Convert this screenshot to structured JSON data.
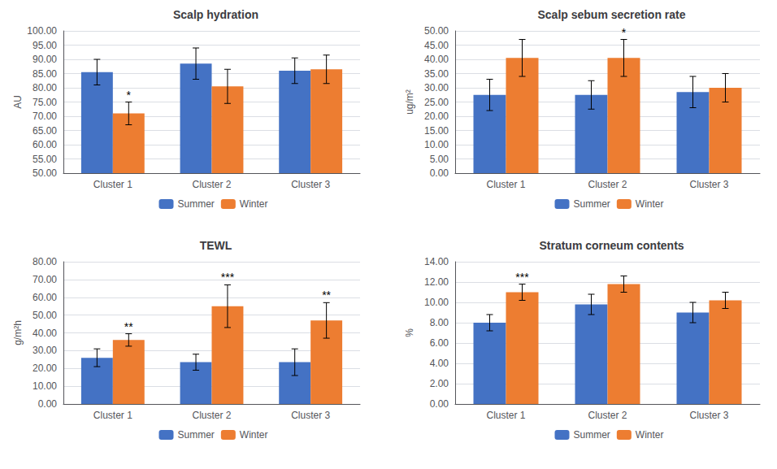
{
  "chart_data": [
    {
      "type": "bar",
      "title": "Scalp hydration",
      "ylabel": "AU",
      "categories": [
        "Cluster 1",
        "Cluster 2",
        "Cluster 3"
      ],
      "series": [
        {
          "name": "Summer",
          "color": "#4472C4",
          "values": [
            85.5,
            88.5,
            86.0
          ],
          "errors": [
            4.5,
            5.5,
            4.5
          ]
        },
        {
          "name": "Winter",
          "color": "#ED7D31",
          "values": [
            71.0,
            80.5,
            86.5
          ],
          "errors": [
            4.0,
            6.0,
            5.0
          ],
          "significance": [
            "*",
            null,
            null
          ]
        }
      ],
      "ylim": [
        50.0,
        100.0
      ],
      "yticks": [
        {
          "value": 50.0,
          "label": "50.00"
        },
        {
          "value": 55.0,
          "label": "55.00"
        },
        {
          "value": 60.0,
          "label": "60.00"
        },
        {
          "value": 65.0,
          "label": "65.00"
        },
        {
          "value": 70.0,
          "label": "70.00"
        },
        {
          "value": 75.0,
          "label": "75.00"
        },
        {
          "value": 80.0,
          "label": "80.00"
        },
        {
          "value": 85.0,
          "label": "85.00"
        },
        {
          "value": 90.0,
          "label": "90.00"
        },
        {
          "value": 95.0,
          "label": "95.00"
        },
        {
          "value": 100.0,
          "label": "100.00"
        }
      ],
      "grid": true,
      "legend": "bottom"
    },
    {
      "type": "bar",
      "title": "Scalp sebum secretion rate",
      "ylabel": "ug/m²",
      "categories": [
        "Cluster 1",
        "Cluster 2",
        "Cluster 3"
      ],
      "series": [
        {
          "name": "Summer",
          "color": "#4472C4",
          "values": [
            27.5,
            27.5,
            28.5
          ],
          "errors": [
            5.5,
            5.0,
            5.5
          ]
        },
        {
          "name": "Winter",
          "color": "#ED7D31",
          "values": [
            40.5,
            40.5,
            30.0
          ],
          "errors": [
            6.5,
            6.5,
            5.0
          ],
          "significance": [
            null,
            "*",
            null
          ]
        }
      ],
      "ylim": [
        0.0,
        50.0
      ],
      "yticks": [
        {
          "value": 0.0,
          "label": "0.00"
        },
        {
          "value": 5.0,
          "label": "5.00"
        },
        {
          "value": 10.0,
          "label": "10.00"
        },
        {
          "value": 15.0,
          "label": "15.00"
        },
        {
          "value": 20.0,
          "label": "20.00"
        },
        {
          "value": 25.0,
          "label": "25.00"
        },
        {
          "value": 30.0,
          "label": "30.00"
        },
        {
          "value": 35.0,
          "label": "35.00"
        },
        {
          "value": 40.0,
          "label": "40.00"
        },
        {
          "value": 45.0,
          "label": "45.00"
        },
        {
          "value": 50.0,
          "label": "50.00"
        }
      ],
      "grid": true,
      "legend": "bottom"
    },
    {
      "type": "bar",
      "title": "TEWL",
      "ylabel": "g/m²h",
      "categories": [
        "Cluster 1",
        "Cluster 2",
        "Cluster 3"
      ],
      "series": [
        {
          "name": "Summer",
          "color": "#4472C4",
          "values": [
            26.0,
            23.5,
            23.5
          ],
          "errors": [
            5.0,
            4.5,
            7.5
          ]
        },
        {
          "name": "Winter",
          "color": "#ED7D31",
          "values": [
            36.0,
            55.0,
            47.0
          ],
          "errors": [
            3.5,
            12.0,
            10.0
          ],
          "significance": [
            "**",
            "***",
            "**"
          ]
        }
      ],
      "ylim": [
        0.0,
        80.0
      ],
      "yticks": [
        {
          "value": 0.0,
          "label": "0.00"
        },
        {
          "value": 10.0,
          "label": "10.00"
        },
        {
          "value": 20.0,
          "label": "20.00"
        },
        {
          "value": 30.0,
          "label": "30.00"
        },
        {
          "value": 40.0,
          "label": "40.00"
        },
        {
          "value": 50.0,
          "label": "50.00"
        },
        {
          "value": 60.0,
          "label": "60.00"
        },
        {
          "value": 70.0,
          "label": "70.00"
        },
        {
          "value": 80.0,
          "label": "80.00"
        }
      ],
      "grid": true,
      "legend": "bottom"
    },
    {
      "type": "bar",
      "title": "Stratum corneum contents",
      "ylabel": "%",
      "categories": [
        "Cluster 1",
        "Cluster 2",
        "Cluster 3"
      ],
      "series": [
        {
          "name": "Summer",
          "color": "#4472C4",
          "values": [
            8.0,
            9.8,
            9.0
          ],
          "errors": [
            0.8,
            1.0,
            1.0
          ]
        },
        {
          "name": "Winter",
          "color": "#ED7D31",
          "values": [
            11.0,
            11.8,
            10.2
          ],
          "errors": [
            0.8,
            0.8,
            0.8
          ],
          "significance": [
            "***",
            null,
            null
          ]
        }
      ],
      "ylim": [
        0.0,
        14.0
      ],
      "yticks": [
        {
          "value": 0.0,
          "label": "0.00"
        },
        {
          "value": 2.0,
          "label": "2.00"
        },
        {
          "value": 4.0,
          "label": "4.00"
        },
        {
          "value": 6.0,
          "label": "6.00"
        },
        {
          "value": 8.0,
          "label": "8.00"
        },
        {
          "value": 10.0,
          "label": "10.00"
        },
        {
          "value": 12.0,
          "label": "12.00"
        },
        {
          "value": 14.0,
          "label": "14.00"
        }
      ],
      "grid": true,
      "legend": "bottom"
    }
  ]
}
